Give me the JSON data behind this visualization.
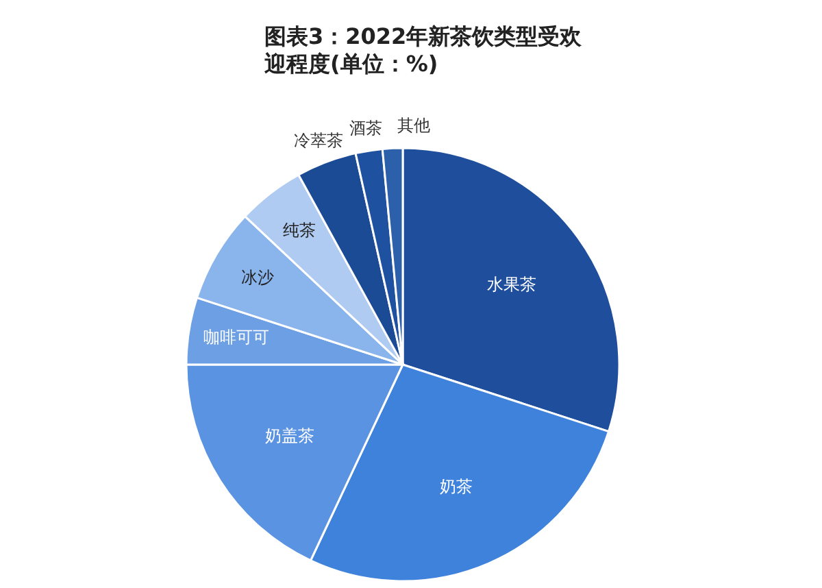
{
  "chart_data": {
    "type": "pie",
    "title": "图表3：2022年新茶饮类型受欢迎程度(单位：%)",
    "categories": [
      "水果茶",
      "奶茶",
      "奶盖茶",
      "咖啡可可",
      "冰沙",
      "纯茶",
      "冷萃茶",
      "酒茶",
      "其他"
    ],
    "values": [
      30,
      27,
      18,
      5,
      7,
      5,
      4.5,
      2,
      1.5
    ],
    "colors": [
      "#1f4f9c",
      "#3f82dc",
      "#5a93e2",
      "#6c9fe4",
      "#8ab4ec",
      "#b0cbf1",
      "#1b4b95",
      "#1e52a0",
      "#2d60ab"
    ],
    "legend": false
  }
}
